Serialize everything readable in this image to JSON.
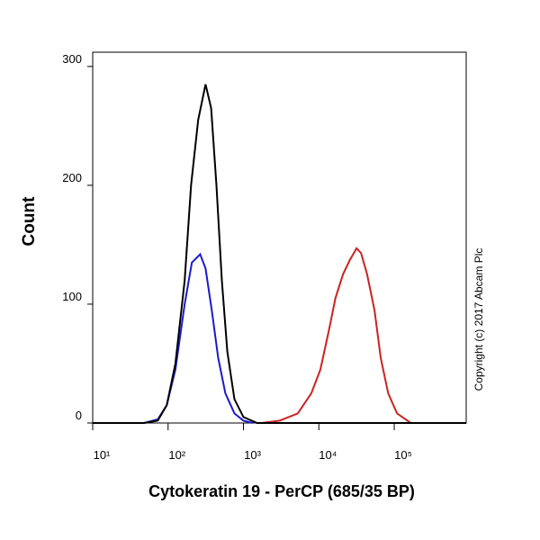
{
  "chart_data": {
    "type": "line",
    "y_label": "Count",
    "x_label": "Cytokeratin 19 - PerCP (685/35 BP)",
    "annotation": "Copyright (c) 2017 Abcam Plc",
    "x_scale": "log",
    "xlim": [
      10,
      900000
    ],
    "ylim": [
      0,
      312
    ],
    "xticks": [
      {
        "value": 10,
        "label": "10¹"
      },
      {
        "value": 100,
        "label": "10²"
      },
      {
        "value": 1000,
        "label": "10³"
      },
      {
        "value": 10000,
        "label": "10⁴"
      },
      {
        "value": 100000,
        "label": "10⁵"
      }
    ],
    "yticks": [
      0,
      100,
      200,
      300
    ],
    "series": [
      {
        "color": "#000000",
        "x": [
          10,
          48,
          73,
          96,
          125,
          166,
          202,
          251,
          314,
          372,
          438,
          517,
          610,
          759,
          1000,
          1514,
          900000
        ],
        "values": [
          0,
          0,
          2,
          15,
          50,
          120,
          200,
          255,
          285,
          265,
          200,
          120,
          60,
          20,
          5,
          0,
          0
        ]
      },
      {
        "color": "#1a1acc",
        "x": [
          48,
          73,
          96,
          125,
          166,
          207,
          266,
          314,
          380,
          462,
          575,
          759,
          1000,
          1318
        ],
        "values": [
          0,
          3,
          15,
          45,
          100,
          135,
          142,
          130,
          95,
          55,
          25,
          8,
          2,
          0
        ]
      },
      {
        "color": "#cc2222",
        "x": [
          1738,
          3020,
          5248,
          7943,
          10470,
          13800,
          16600,
          20900,
          25700,
          31600,
          36300,
          43600,
          54700,
          66000,
          83000,
          109000,
          166000
        ],
        "values": [
          0,
          2,
          8,
          25,
          45,
          80,
          105,
          125,
          137,
          147,
          143,
          125,
          95,
          55,
          25,
          8,
          0
        ]
      }
    ]
  }
}
